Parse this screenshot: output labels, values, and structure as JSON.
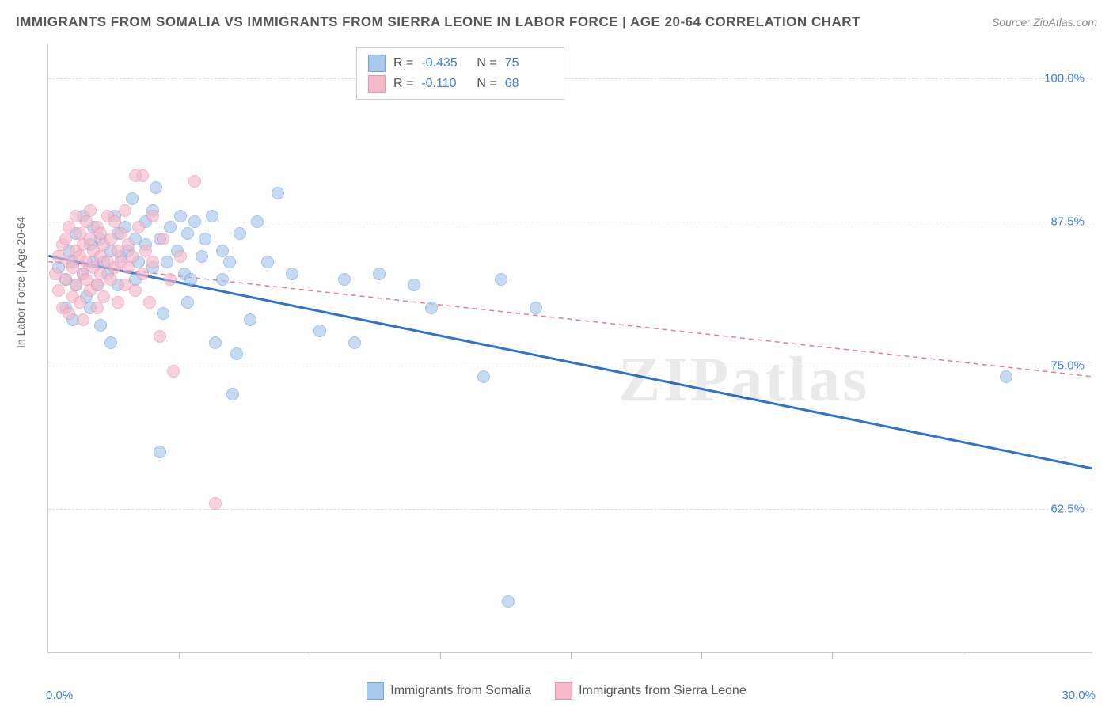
{
  "title": "IMMIGRANTS FROM SOMALIA VS IMMIGRANTS FROM SIERRA LEONE IN LABOR FORCE | AGE 20-64 CORRELATION CHART",
  "source": "Source: ZipAtlas.com",
  "watermark": "ZIPatlas",
  "y_axis_title": "In Labor Force | Age 20-64",
  "chart": {
    "type": "scatter",
    "xlim": [
      0.0,
      30.0
    ],
    "ylim": [
      50.0,
      103.0
    ],
    "x_ticks_major": [
      0.0,
      30.0
    ],
    "x_ticks_minor": [
      3.75,
      7.5,
      11.25,
      15.0,
      18.75,
      22.5,
      26.25
    ],
    "y_ticks": [
      62.5,
      75.0,
      87.5,
      100.0
    ],
    "x_tick_labels": [
      "0.0%",
      "30.0%"
    ],
    "y_tick_labels": [
      "62.5%",
      "75.0%",
      "87.5%",
      "100.0%"
    ],
    "grid_color": "#dddddd",
    "axis_color": "#cccccc",
    "tick_color": "#bbbbbb",
    "background_color": "#ffffff",
    "label_color": "#3b7dd8",
    "title_color": "#555555"
  },
  "series": [
    {
      "id": "somalia",
      "label": "Immigrants from Somalia",
      "R": "-0.435",
      "N": "75",
      "fill_color": "#a8c8ec",
      "stroke_color": "#6fa3de",
      "line_color": "#2f73d0",
      "line_dash": "none",
      "line_width": 3,
      "trend": {
        "x1": 0.0,
        "y1": 84.5,
        "x2": 30.0,
        "y2": 66.0
      },
      "points": [
        [
          0.3,
          83.5
        ],
        [
          0.5,
          80.0
        ],
        [
          0.5,
          82.5
        ],
        [
          0.6,
          85.0
        ],
        [
          0.7,
          79.0
        ],
        [
          0.7,
          84.0
        ],
        [
          0.8,
          86.5
        ],
        [
          0.8,
          82.0
        ],
        [
          1.0,
          88.0
        ],
        [
          1.0,
          83.0
        ],
        [
          1.1,
          81.0
        ],
        [
          1.2,
          85.5
        ],
        [
          1.2,
          80.0
        ],
        [
          1.3,
          87.0
        ],
        [
          1.3,
          84.0
        ],
        [
          1.4,
          82.0
        ],
        [
          1.5,
          86.0
        ],
        [
          1.5,
          78.5
        ],
        [
          1.6,
          84.0
        ],
        [
          1.7,
          83.0
        ],
        [
          1.8,
          85.0
        ],
        [
          1.8,
          77.0
        ],
        [
          1.9,
          88.0
        ],
        [
          2.0,
          86.5
        ],
        [
          2.0,
          82.0
        ],
        [
          2.1,
          84.5
        ],
        [
          2.2,
          87.0
        ],
        [
          2.3,
          85.0
        ],
        [
          2.4,
          89.5
        ],
        [
          2.5,
          82.5
        ],
        [
          2.5,
          86.0
        ],
        [
          2.6,
          84.0
        ],
        [
          2.8,
          85.5
        ],
        [
          2.8,
          87.5
        ],
        [
          3.0,
          88.5
        ],
        [
          3.0,
          83.5
        ],
        [
          3.1,
          90.5
        ],
        [
          3.2,
          86.0
        ],
        [
          3.3,
          79.5
        ],
        [
          3.4,
          84.0
        ],
        [
          3.5,
          87.0
        ],
        [
          3.7,
          85.0
        ],
        [
          3.8,
          88.0
        ],
        [
          3.9,
          83.0
        ],
        [
          4.0,
          86.5
        ],
        [
          4.0,
          80.5
        ],
        [
          4.1,
          82.5
        ],
        [
          4.2,
          87.5
        ],
        [
          4.4,
          84.5
        ],
        [
          4.5,
          86.0
        ],
        [
          4.7,
          88.0
        ],
        [
          4.8,
          77.0
        ],
        [
          5.0,
          85.0
        ],
        [
          5.0,
          82.5
        ],
        [
          5.2,
          84.0
        ],
        [
          5.3,
          72.5
        ],
        [
          5.4,
          76.0
        ],
        [
          5.5,
          86.5
        ],
        [
          5.8,
          79.0
        ],
        [
          6.0,
          87.5
        ],
        [
          6.3,
          84.0
        ],
        [
          6.6,
          90.0
        ],
        [
          7.0,
          83.0
        ],
        [
          7.8,
          78.0
        ],
        [
          8.5,
          82.5
        ],
        [
          8.8,
          77.0
        ],
        [
          9.5,
          83.0
        ],
        [
          10.5,
          82.0
        ],
        [
          11.0,
          80.0
        ],
        [
          12.5,
          74.0
        ],
        [
          13.0,
          82.5
        ],
        [
          13.2,
          54.5
        ],
        [
          14.0,
          80.0
        ],
        [
          27.5,
          74.0
        ],
        [
          3.2,
          67.5
        ]
      ]
    },
    {
      "id": "sierra_leone",
      "label": "Immigrants from Sierra Leone",
      "R": "-0.110",
      "N": "68",
      "fill_color": "#f4b9c9",
      "stroke_color": "#e892ac",
      "line_color": "#e57a98",
      "line_dash": "6,5",
      "line_width": 1.5,
      "trend": {
        "x1": 0.0,
        "y1": 84.0,
        "x2": 30.0,
        "y2": 74.0
      },
      "points": [
        [
          0.2,
          83.0
        ],
        [
          0.3,
          81.5
        ],
        [
          0.3,
          84.5
        ],
        [
          0.4,
          80.0
        ],
        [
          0.4,
          85.5
        ],
        [
          0.5,
          82.5
        ],
        [
          0.5,
          86.0
        ],
        [
          0.6,
          84.0
        ],
        [
          0.6,
          79.5
        ],
        [
          0.6,
          87.0
        ],
        [
          0.7,
          83.5
        ],
        [
          0.7,
          81.0
        ],
        [
          0.8,
          85.0
        ],
        [
          0.8,
          82.0
        ],
        [
          0.8,
          88.0
        ],
        [
          0.9,
          84.5
        ],
        [
          0.9,
          80.5
        ],
        [
          0.9,
          86.5
        ],
        [
          1.0,
          83.0
        ],
        [
          1.0,
          85.5
        ],
        [
          1.0,
          79.0
        ],
        [
          1.1,
          87.5
        ],
        [
          1.1,
          82.5
        ],
        [
          1.1,
          84.0
        ],
        [
          1.2,
          86.0
        ],
        [
          1.2,
          81.5
        ],
        [
          1.2,
          88.5
        ],
        [
          1.3,
          83.5
        ],
        [
          1.3,
          85.0
        ],
        [
          1.4,
          82.0
        ],
        [
          1.4,
          87.0
        ],
        [
          1.4,
          80.0
        ],
        [
          1.5,
          84.5
        ],
        [
          1.5,
          86.5
        ],
        [
          1.5,
          83.0
        ],
        [
          1.6,
          85.5
        ],
        [
          1.6,
          81.0
        ],
        [
          1.7,
          88.0
        ],
        [
          1.7,
          84.0
        ],
        [
          1.8,
          82.5
        ],
        [
          1.8,
          86.0
        ],
        [
          1.9,
          83.5
        ],
        [
          1.9,
          87.5
        ],
        [
          2.0,
          85.0
        ],
        [
          2.0,
          80.5
        ],
        [
          2.1,
          84.0
        ],
        [
          2.1,
          86.5
        ],
        [
          2.2,
          82.0
        ],
        [
          2.2,
          88.5
        ],
        [
          2.3,
          83.5
        ],
        [
          2.3,
          85.5
        ],
        [
          2.4,
          84.5
        ],
        [
          2.5,
          81.5
        ],
        [
          2.6,
          87.0
        ],
        [
          2.7,
          83.0
        ],
        [
          2.7,
          91.5
        ],
        [
          2.8,
          85.0
        ],
        [
          2.9,
          80.5
        ],
        [
          3.0,
          84.0
        ],
        [
          3.0,
          88.0
        ],
        [
          3.2,
          77.5
        ],
        [
          3.3,
          86.0
        ],
        [
          3.5,
          82.5
        ],
        [
          3.6,
          74.5
        ],
        [
          3.8,
          84.5
        ],
        [
          4.2,
          91.0
        ],
        [
          2.5,
          91.5
        ],
        [
          4.8,
          63.0
        ]
      ]
    }
  ],
  "stats_legend": {
    "R_label": "R  =",
    "N_label": "N  ="
  },
  "bottom_legend_labels": [
    "Immigrants from Somalia",
    "Immigrants from Sierra Leone"
  ]
}
